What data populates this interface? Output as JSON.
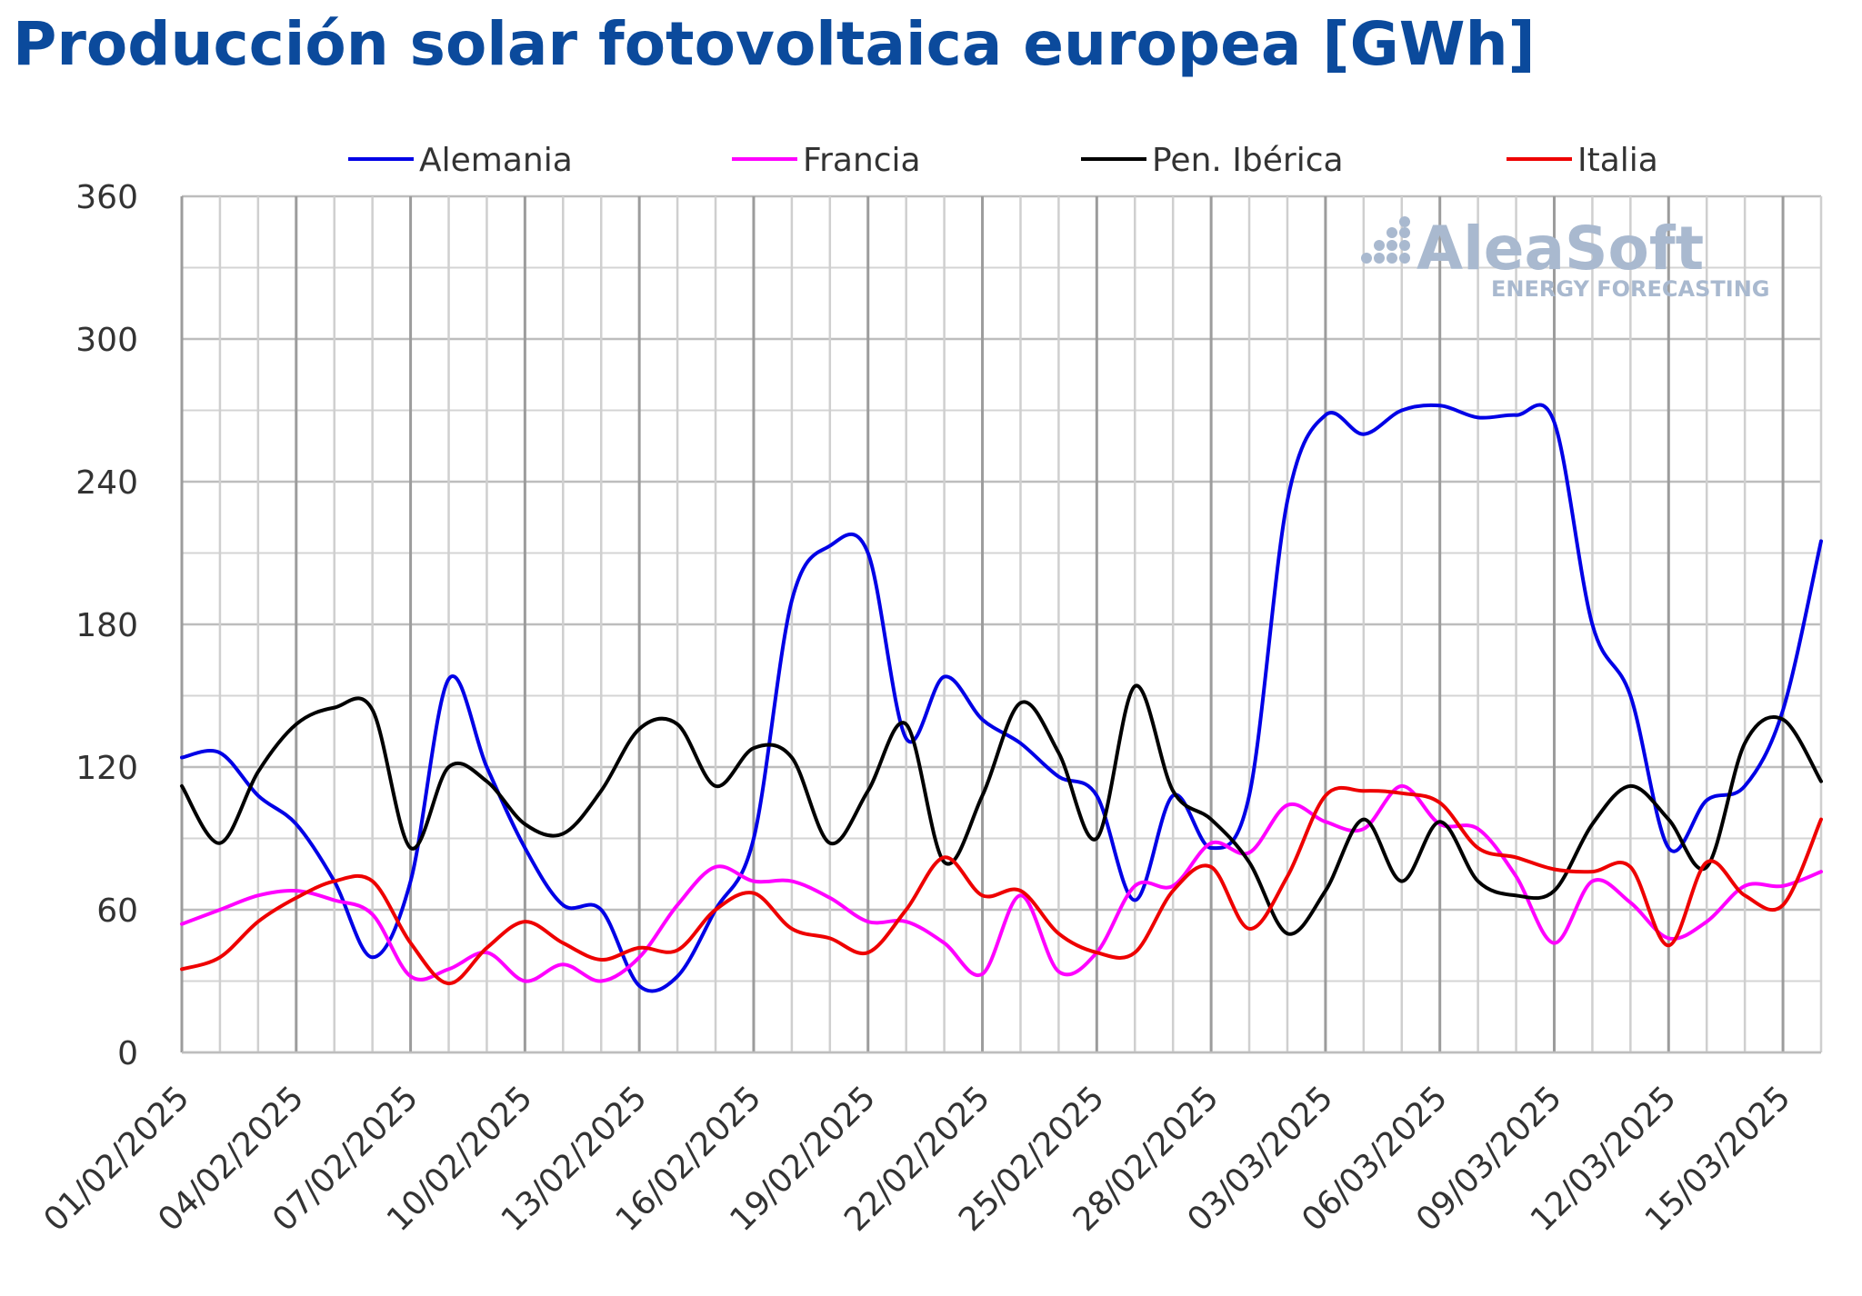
{
  "chart_data": {
    "type": "line",
    "title": "Producción solar fotovoltaica europea [GWh]",
    "xlabel": "",
    "ylabel": "",
    "ylim": [
      0,
      360
    ],
    "yticks": [
      0,
      60,
      120,
      180,
      240,
      300,
      360
    ],
    "grid": true,
    "legend_position": "top",
    "x": [
      "01/02/2025",
      "02/02/2025",
      "03/02/2025",
      "04/02/2025",
      "05/02/2025",
      "06/02/2025",
      "07/02/2025",
      "08/02/2025",
      "09/02/2025",
      "10/02/2025",
      "11/02/2025",
      "12/02/2025",
      "13/02/2025",
      "14/02/2025",
      "15/02/2025",
      "16/02/2025",
      "17/02/2025",
      "18/02/2025",
      "19/02/2025",
      "20/02/2025",
      "21/02/2025",
      "22/02/2025",
      "23/02/2025",
      "24/02/2025",
      "25/02/2025",
      "26/02/2025",
      "27/02/2025",
      "28/02/2025",
      "01/03/2025",
      "02/03/2025",
      "03/03/2025",
      "04/03/2025",
      "05/03/2025",
      "06/03/2025",
      "07/03/2025",
      "08/03/2025",
      "09/03/2025",
      "10/03/2025",
      "11/03/2025",
      "12/03/2025",
      "13/03/2025",
      "14/03/2025",
      "15/03/2025",
      "16/03/2025"
    ],
    "x_tick_labels": [
      "01/02/2025",
      "04/02/2025",
      "07/02/2025",
      "10/02/2025",
      "13/02/2025",
      "16/02/2025",
      "19/02/2025",
      "22/02/2025",
      "25/02/2025",
      "28/02/2025",
      "03/03/2025",
      "06/03/2025",
      "09/03/2025",
      "12/03/2025",
      "15/03/2025"
    ],
    "series": [
      {
        "name": "Alemania",
        "color": "#0000e6",
        "values": [
          124,
          126,
          108,
          96,
          72,
          40,
          72,
          157,
          120,
          86,
          62,
          60,
          28,
          32,
          60,
          90,
          190,
          213,
          210,
          132,
          158,
          140,
          130,
          116,
          108,
          64,
          108,
          86,
          108,
          232,
          268,
          260,
          270,
          272,
          267,
          268,
          265,
          180,
          150,
          86,
          106,
          112,
          144,
          215
        ]
      },
      {
        "name": "Francia",
        "color": "#ff00ff",
        "values": [
          54,
          60,
          66,
          68,
          64,
          58,
          32,
          35,
          42,
          30,
          37,
          30,
          40,
          62,
          78,
          72,
          72,
          65,
          55,
          55,
          46,
          33,
          66,
          34,
          42,
          70,
          70,
          88,
          84,
          104,
          97,
          94,
          112,
          96,
          94,
          74,
          46,
          72,
          63,
          48,
          55,
          70,
          70,
          76
        ]
      },
      {
        "name": "Pen. Ibérica",
        "color": "#000000",
        "values": [
          112,
          88,
          118,
          138,
          145,
          144,
          86,
          120,
          114,
          96,
          92,
          110,
          136,
          138,
          112,
          128,
          124,
          88,
          110,
          138,
          80,
          108,
          147,
          126,
          90,
          154,
          110,
          98,
          80,
          50,
          68,
          98,
          72,
          97,
          72,
          66,
          68,
          96,
          112,
          98,
          78,
          130,
          140,
          114
        ]
      },
      {
        "name": "Italia",
        "color": "#ee0000",
        "values": [
          35,
          40,
          55,
          65,
          72,
          72,
          46,
          29,
          44,
          55,
          46,
          39,
          44,
          43,
          60,
          67,
          52,
          48,
          42,
          60,
          82,
          66,
          68,
          50,
          42,
          42,
          68,
          78,
          52,
          74,
          108,
          110,
          109,
          105,
          86,
          82,
          77,
          76,
          78,
          45,
          80,
          66,
          62,
          98
        ]
      }
    ]
  },
  "watermark": {
    "brand": "AleaSoft",
    "tagline": "ENERGY FORECASTING"
  }
}
